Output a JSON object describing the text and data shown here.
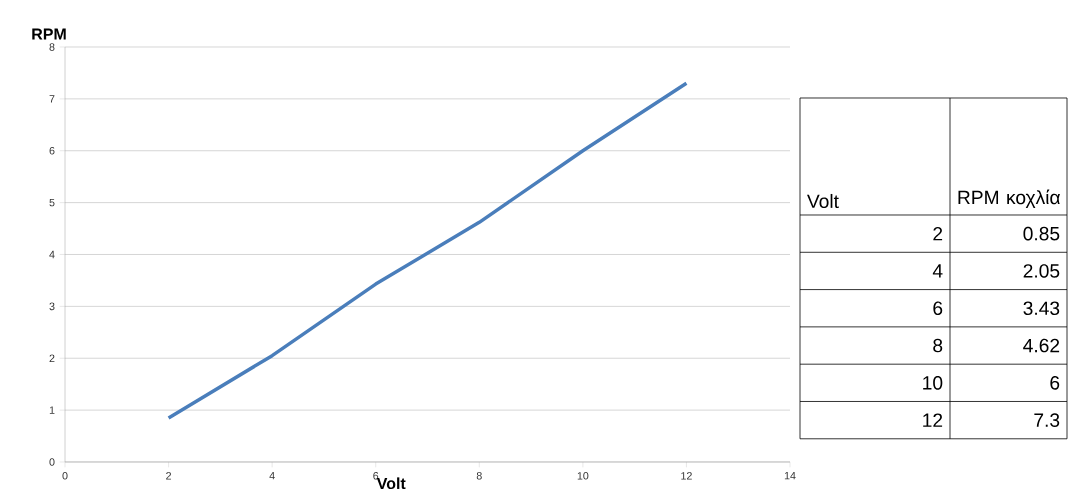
{
  "chart_data": {
    "type": "line",
    "xlabel": "Volt",
    "ylabel": "RPM",
    "x": [
      2,
      4,
      6,
      8,
      10,
      12
    ],
    "series": [
      {
        "color": "#4a7ebb",
        "values": [
          0.85,
          2.05,
          3.43,
          4.62,
          6,
          7.3
        ]
      }
    ],
    "xlim": [
      0,
      14
    ],
    "xticks": [
      0,
      2,
      4,
      6,
      8,
      10,
      12,
      14
    ],
    "ylim": [
      0,
      8
    ],
    "yticks": [
      0,
      1,
      2,
      3,
      4,
      5,
      6,
      7,
      8
    ],
    "grid": "y",
    "marker": "none",
    "line_style": "solid",
    "annotations": [
      "Volt",
      "RPM κοχλία",
      "2",
      "0.85",
      "4",
      "2.05",
      "6",
      "3.43",
      "8",
      "4.62",
      "10",
      "6",
      "12",
      "7.3"
    ]
  }
}
